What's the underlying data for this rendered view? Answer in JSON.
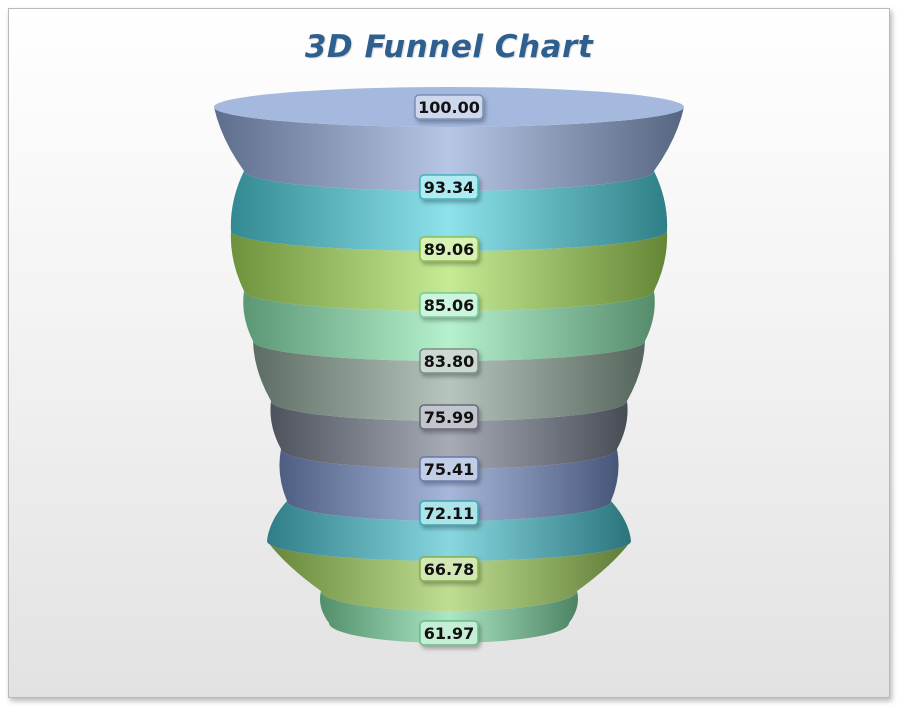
{
  "chart_data": {
    "type": "funnel",
    "title": "3D Funnel Chart",
    "values": [
      100.0,
      93.34,
      89.06,
      85.06,
      83.8,
      75.99,
      75.41,
      72.11,
      66.78,
      61.97
    ],
    "labels": [
      "100.00",
      "93.34",
      "89.06",
      "85.06",
      "83.80",
      "75.99",
      "75.41",
      "72.11",
      "66.78",
      "61.97"
    ],
    "colors": [
      "#8fa8d6",
      "#4fd3e0",
      "#a8e05a",
      "#8ee9b4",
      "#8fa89a",
      "#777e8e",
      "#7790c8",
      "#48c2cf",
      "#9ccc58",
      "#7fdaa5"
    ],
    "label_positions": "center"
  }
}
